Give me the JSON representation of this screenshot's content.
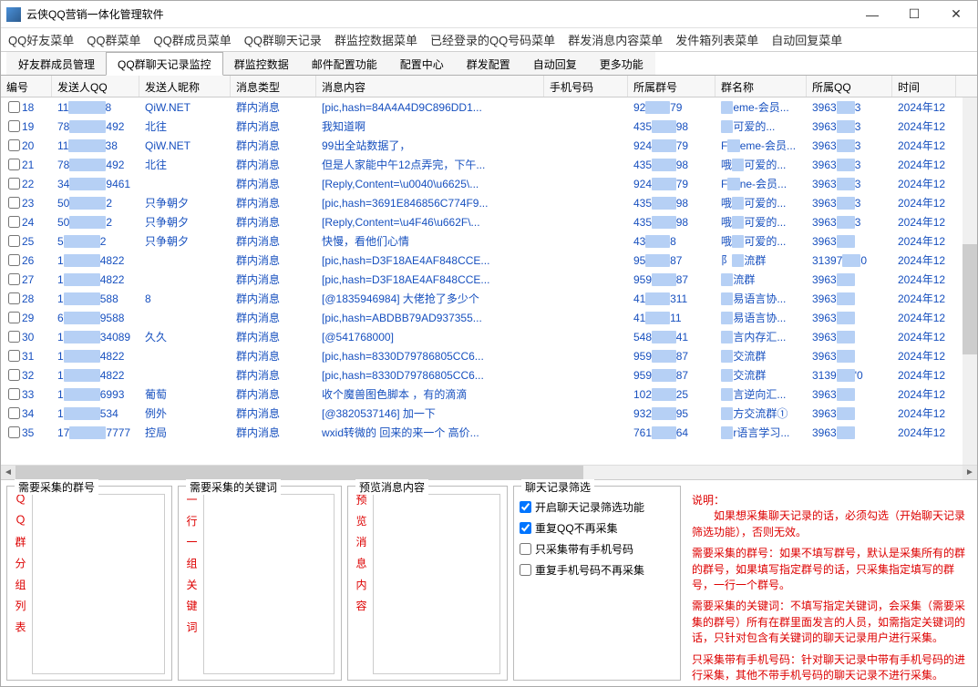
{
  "window": {
    "title": "云侠QQ营销一体化管理软件"
  },
  "menubar": [
    "QQ好友菜单",
    "QQ群菜单",
    "QQ群成员菜单",
    "QQ群聊天记录",
    "群监控数据菜单",
    "已经登录的QQ号码菜单",
    "群发消息内容菜单",
    "发件箱列表菜单",
    "自动回复菜单"
  ],
  "tabs": [
    {
      "label": "好友群成员管理",
      "active": false
    },
    {
      "label": "QQ群聊天记录监控",
      "active": true
    },
    {
      "label": "群监控数据",
      "active": false
    },
    {
      "label": "邮件配置功能",
      "active": false
    },
    {
      "label": "配置中心",
      "active": false
    },
    {
      "label": "群发配置",
      "active": false
    },
    {
      "label": "自动回复",
      "active": false
    },
    {
      "label": "更多功能",
      "active": false
    }
  ],
  "grid": {
    "headers": [
      "编号",
      "发送人QQ",
      "发送人昵称",
      "消息类型",
      "消息内容",
      "手机号码",
      "所属群号",
      "群名称",
      "所属QQ",
      "时间"
    ],
    "rows": [
      {
        "id": "18",
        "qq_a": "11",
        "qq_b": "8",
        "nick": "QiW.NET",
        "type": "群内消息",
        "msg": "[pic,hash=84A4A4D9C896DD1...",
        "phone": "",
        "grp_a": "92",
        "grp_b": "79",
        "gname_a": "",
        "gname_b": "eme-会员...",
        "own_a": "3963",
        "own_b": "3",
        "time": "2024年12"
      },
      {
        "id": "19",
        "qq_a": "78",
        "qq_b": "492",
        "nick": "北往",
        "type": "群内消息",
        "msg": "我知道啊",
        "phone": "",
        "grp_a": "435",
        "grp_b": "98",
        "gname_a": "",
        "gname_b": "可爱的...",
        "own_a": "3963",
        "own_b": "3",
        "time": "2024年12"
      },
      {
        "id": "20",
        "qq_a": "11",
        "qq_b": "38",
        "nick": "QiW.NET",
        "type": "群内消息",
        "msg": "99出全站数据了，",
        "phone": "",
        "grp_a": "924",
        "grp_b": "79",
        "gname_a": "F",
        "gname_b": "eme-会员...",
        "own_a": "3963",
        "own_b": "3",
        "time": "2024年12"
      },
      {
        "id": "21",
        "qq_a": "78",
        "qq_b": "492",
        "nick": "北往",
        "type": "群内消息",
        "msg": "但是人家能中午12点弄完，下午...",
        "phone": "",
        "grp_a": "435",
        "grp_b": "98",
        "gname_a": "哦",
        "gname_b": "可爱的...",
        "own_a": "3963",
        "own_b": "3",
        "time": "2024年12"
      },
      {
        "id": "22",
        "qq_a": "34",
        "qq_b": "9461",
        "nick": "",
        "type": "群内消息",
        "msg": "[Reply,Content=\\u0040\\u6625\\...",
        "phone": "",
        "grp_a": "924",
        "grp_b": "79",
        "gname_a": "F",
        "gname_b": "ne-会员...",
        "own_a": "3963",
        "own_b": "3",
        "time": "2024年12"
      },
      {
        "id": "23",
        "qq_a": "50",
        "qq_b": "2",
        "nick": "只争朝夕",
        "type": "群内消息",
        "msg": "[pic,hash=3691E846856C774F9...",
        "phone": "",
        "grp_a": "435",
        "grp_b": "98",
        "gname_a": "哦",
        "gname_b": "可爱的...",
        "own_a": "3963",
        "own_b": "3",
        "time": "2024年12"
      },
      {
        "id": "24",
        "qq_a": "50",
        "qq_b": "2",
        "nick": "只争朝夕",
        "type": "群内消息",
        "msg": "[Reply,Content=\\u4F46\\u662F\\...",
        "phone": "",
        "grp_a": "435",
        "grp_b": "98",
        "gname_a": "哦",
        "gname_b": "可爱的...",
        "own_a": "3963",
        "own_b": "3",
        "time": "2024年12"
      },
      {
        "id": "25",
        "qq_a": "5",
        "qq_b": "2",
        "nick": "只争朝夕",
        "type": "群内消息",
        "msg": "快慢，看他们心情",
        "phone": "",
        "grp_a": "43",
        "grp_b": "8",
        "gname_a": "哦",
        "gname_b": "可爱的...",
        "own_a": "3963",
        "own_b": "",
        "time": "2024年12"
      },
      {
        "id": "26",
        "qq_a": "1",
        "qq_b": "4822",
        "nick": "",
        "type": "群内消息",
        "msg": "[pic,hash=D3F18AE4AF848CCE...",
        "phone": "",
        "grp_a": "95",
        "grp_b": "87",
        "gname_a": "阝",
        "gname_b": "流群",
        "own_a": "31397",
        "own_b": "0",
        "time": "2024年12"
      },
      {
        "id": "27",
        "qq_a": "1",
        "qq_b": "4822",
        "nick": "",
        "type": "群内消息",
        "msg": "[pic,hash=D3F18AE4AF848CCE...",
        "phone": "",
        "grp_a": "959",
        "grp_b": "87",
        "gname_a": "",
        "gname_b": "流群",
        "own_a": "3963",
        "own_b": "",
        "time": "2024年12"
      },
      {
        "id": "28",
        "qq_a": "1",
        "qq_b": "588",
        "nick": "8",
        "type": "群内消息",
        "msg": "[@1835946984] 大佬抢了多少个",
        "phone": "",
        "grp_a": "41",
        "grp_b": "311",
        "gname_a": "",
        "gname_b": "易语言协...",
        "own_a": "3963",
        "own_b": "",
        "time": "2024年12"
      },
      {
        "id": "29",
        "qq_a": "6",
        "qq_b": "9588",
        "nick": "",
        "type": "群内消息",
        "msg": "[pic,hash=ABDBB79AD937355...",
        "phone": "",
        "grp_a": "41",
        "grp_b": "11",
        "gname_a": "",
        "gname_b": "易语言协...",
        "own_a": "3963",
        "own_b": "",
        "time": "2024年12"
      },
      {
        "id": "30",
        "qq_a": "1",
        "qq_b": "34089",
        "nick": "久久",
        "type": "群内消息",
        "msg": "[@541768000]",
        "phone": "",
        "grp_a": "548",
        "grp_b": "41",
        "gname_a": "",
        "gname_b": "言内存汇...",
        "own_a": "3963",
        "own_b": "",
        "time": "2024年12"
      },
      {
        "id": "31",
        "qq_a": "1",
        "qq_b": "4822",
        "nick": "",
        "type": "群内消息",
        "msg": "[pic,hash=8330D79786805CC6...",
        "phone": "",
        "grp_a": "959",
        "grp_b": "87",
        "gname_a": "",
        "gname_b": "交流群",
        "own_a": "3963",
        "own_b": "",
        "time": "2024年12"
      },
      {
        "id": "32",
        "qq_a": "1",
        "qq_b": "4822",
        "nick": "",
        "type": "群内消息",
        "msg": "[pic,hash=8330D79786805CC6...",
        "phone": "",
        "grp_a": "959",
        "grp_b": "87",
        "gname_a": "",
        "gname_b": "交流群",
        "own_a": "3139",
        "own_b": "'0",
        "time": "2024年12"
      },
      {
        "id": "33",
        "qq_a": "1",
        "qq_b": "6993",
        "nick": "葡萄",
        "type": "群内消息",
        "msg": "收个魔兽图色脚本 ，有的滴滴",
        "phone": "",
        "grp_a": "102",
        "grp_b": "25",
        "gname_a": "",
        "gname_b": "言逆向汇...",
        "own_a": "3963",
        "own_b": "",
        "time": "2024年12"
      },
      {
        "id": "34",
        "qq_a": "1",
        "qq_b": "534",
        "nick": "例外",
        "type": "群内消息",
        "msg": "[@3820537146] 加一下",
        "phone": "",
        "grp_a": "932",
        "grp_b": "95",
        "gname_a": "",
        "gname_b": "方交流群①",
        "own_a": "3963",
        "own_b": "",
        "time": "2024年12"
      },
      {
        "id": "35",
        "qq_a": "17",
        "qq_b": "7777",
        "nick": "控局",
        "type": "群内消息",
        "msg": "wxid转微的  回来的来一个  高价...",
        "phone": "",
        "grp_a": "761",
        "grp_b": "64",
        "gname_a": "",
        "gname_b": "r语言学习...",
        "own_a": "3963",
        "own_b": "",
        "time": "2024年12"
      }
    ]
  },
  "bottom": {
    "panel1_title": "需要采集的群号",
    "panel1_vlabel": "Ｑ Ｑ 群 分 组 列 表",
    "panel2_title": "需要采集的关键词",
    "panel2_vlabel": "一 行 一 组 关 键 词",
    "panel3_title": "预览消息内容",
    "panel3_vlabel": "预 览 消 息 内 容",
    "panel4_title": "聊天记录筛选",
    "chk1": "开启聊天记录筛选功能",
    "chk2": "重复QQ不再采集",
    "chk3": "只采集带有手机号码",
    "chk4": "重复手机号码不再采集",
    "help_hd": "说明：",
    "help_p1": "　　如果想采集聊天记录的话，必须勾选（开始聊天记录筛选功能），否则无效。",
    "help_p2": "需要采集的群号：如果不填写群号，默认是采集所有的群的群号，如果填写指定群号的话，只采集指定填写的群号，一行一个群号。",
    "help_p3": "需要采集的关键词：不填写指定关键词，会采集（需要采集的群号）所有在群里面发言的人员，如需指定关键词的话，只针对包含有关键词的聊天记录用户进行采集。",
    "help_p4": "只采集带有手机号码：针对聊天记录中带有手机号码的进行采集，其他不带手机号码的聊天记录不进行采集。"
  },
  "colors": {
    "link": "#1750bf",
    "red": "#d00",
    "blur": "#b6d0f5"
  }
}
